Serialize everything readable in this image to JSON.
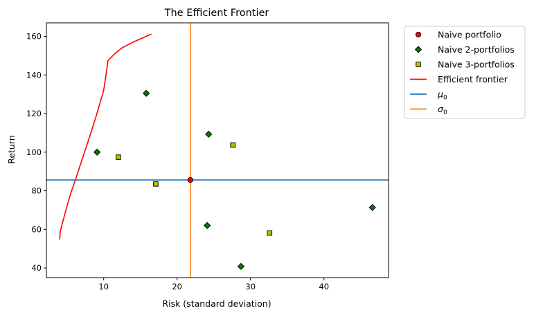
{
  "chart_data": {
    "type": "scatter",
    "title": "The Efficient Frontier",
    "xlabel": "Risk (standard deviation)",
    "ylabel": "Return",
    "xlim": [
      2.2,
      48.8
    ],
    "ylim": [
      35,
      167
    ],
    "xticks": [
      10,
      20,
      30,
      40
    ],
    "yticks": [
      40,
      60,
      80,
      100,
      120,
      140,
      160
    ],
    "grid": false,
    "legend_position": "outside-top-right",
    "series": [
      {
        "name": "Naive portfolio",
        "kind": "scatter",
        "marker": "circle",
        "color": "#ff0000",
        "edge_color": "#000000",
        "points": [
          [
            21.8,
            85.6
          ]
        ]
      },
      {
        "name": "Naive 2-portfolios",
        "kind": "scatter",
        "marker": "diamond",
        "color": "#008000",
        "edge_color": "#000000",
        "points": [
          [
            9.1,
            100.0
          ],
          [
            15.8,
            130.5
          ],
          [
            24.3,
            109.3
          ],
          [
            24.1,
            62.0
          ],
          [
            28.7,
            40.8
          ],
          [
            46.6,
            71.3
          ]
        ]
      },
      {
        "name": "Naive 3-portfolios",
        "kind": "scatter",
        "marker": "square",
        "color": "#bfbf00",
        "edge_color": "#000000",
        "points": [
          [
            12.0,
            97.4
          ],
          [
            17.1,
            83.5
          ],
          [
            27.6,
            103.7
          ],
          [
            32.6,
            58.1
          ]
        ]
      },
      {
        "name": "Efficient frontier",
        "kind": "line",
        "color": "#ff0000",
        "points": [
          [
            4.0,
            54.8
          ],
          [
            4.1,
            59.0
          ],
          [
            4.5,
            65.0
          ],
          [
            5.0,
            72.0
          ],
          [
            5.5,
            78.5
          ],
          [
            6.0,
            84.0
          ],
          [
            7.0,
            95.5
          ],
          [
            8.0,
            107.0
          ],
          [
            9.0,
            119.0
          ],
          [
            10.0,
            132.0
          ],
          [
            10.6,
            147.5
          ],
          [
            11.5,
            151.0
          ],
          [
            12.5,
            154.0
          ],
          [
            14.0,
            157.0
          ],
          [
            15.5,
            159.5
          ],
          [
            16.5,
            161.2
          ]
        ]
      },
      {
        "name": "μ0",
        "label_base": "μ",
        "label_sub": "0",
        "kind": "hline",
        "color": "#1f77b4",
        "value": 85.6
      },
      {
        "name": "σ0",
        "label_base": "σ",
        "label_sub": "0",
        "kind": "vline",
        "color": "#ff7f0e",
        "value": 21.8
      }
    ]
  }
}
